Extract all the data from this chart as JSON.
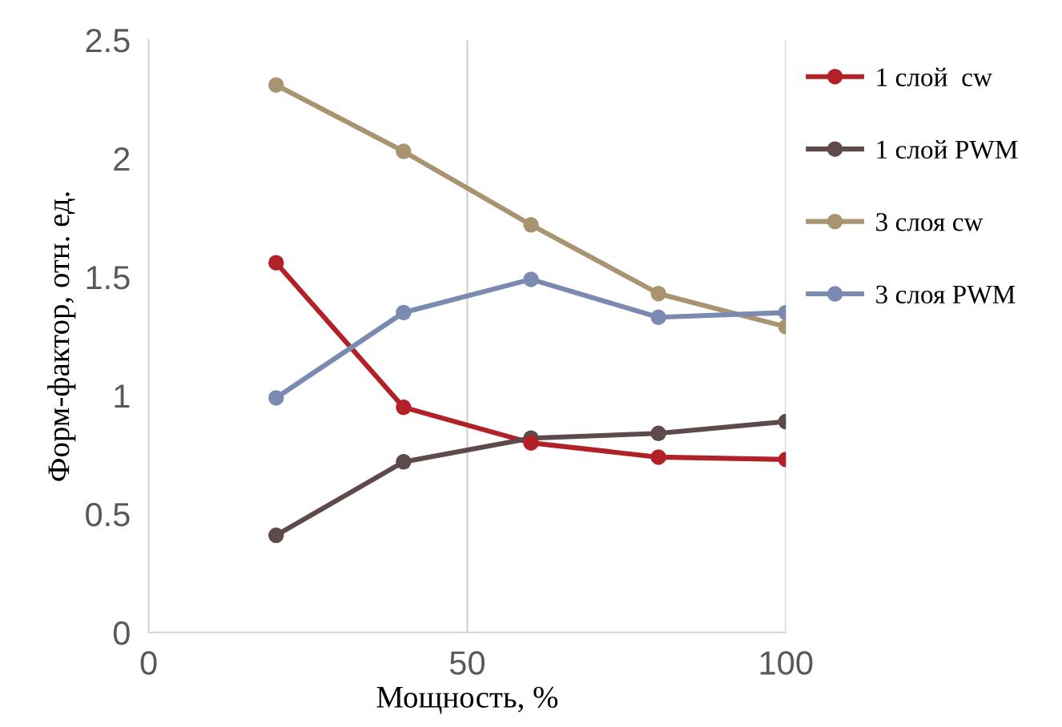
{
  "chart_data": {
    "type": "line",
    "xlabel": "Мощность, %",
    "ylabel": "Форм-фактор, отн. ед.",
    "x": [
      20,
      40,
      60,
      80,
      100
    ],
    "series": [
      {
        "name": "1 слой  cw",
        "color": "#b22028",
        "values": [
          1.56,
          0.95,
          0.8,
          0.74,
          0.73
        ]
      },
      {
        "name": "1 слой PWM",
        "color": "#5e4a4a",
        "values": [
          0.41,
          0.72,
          0.82,
          0.84,
          0.89
        ]
      },
      {
        "name": "3 слоя cw",
        "color": "#a89470",
        "values": [
          2.31,
          2.03,
          1.72,
          1.43,
          1.29
        ]
      },
      {
        "name": "3 слоя PWM",
        "color": "#7a8ab0",
        "values": [
          0.99,
          1.35,
          1.49,
          1.33,
          1.35
        ]
      }
    ],
    "xlim": [
      0,
      100
    ],
    "xticks": [
      0,
      50,
      100
    ],
    "ylim": [
      0,
      2.5
    ],
    "yticks": [
      0,
      0.5,
      1,
      1.5,
      2,
      2.5
    ],
    "grid": "x",
    "legend": "right",
    "marker": "circle",
    "line_style": "solid"
  }
}
